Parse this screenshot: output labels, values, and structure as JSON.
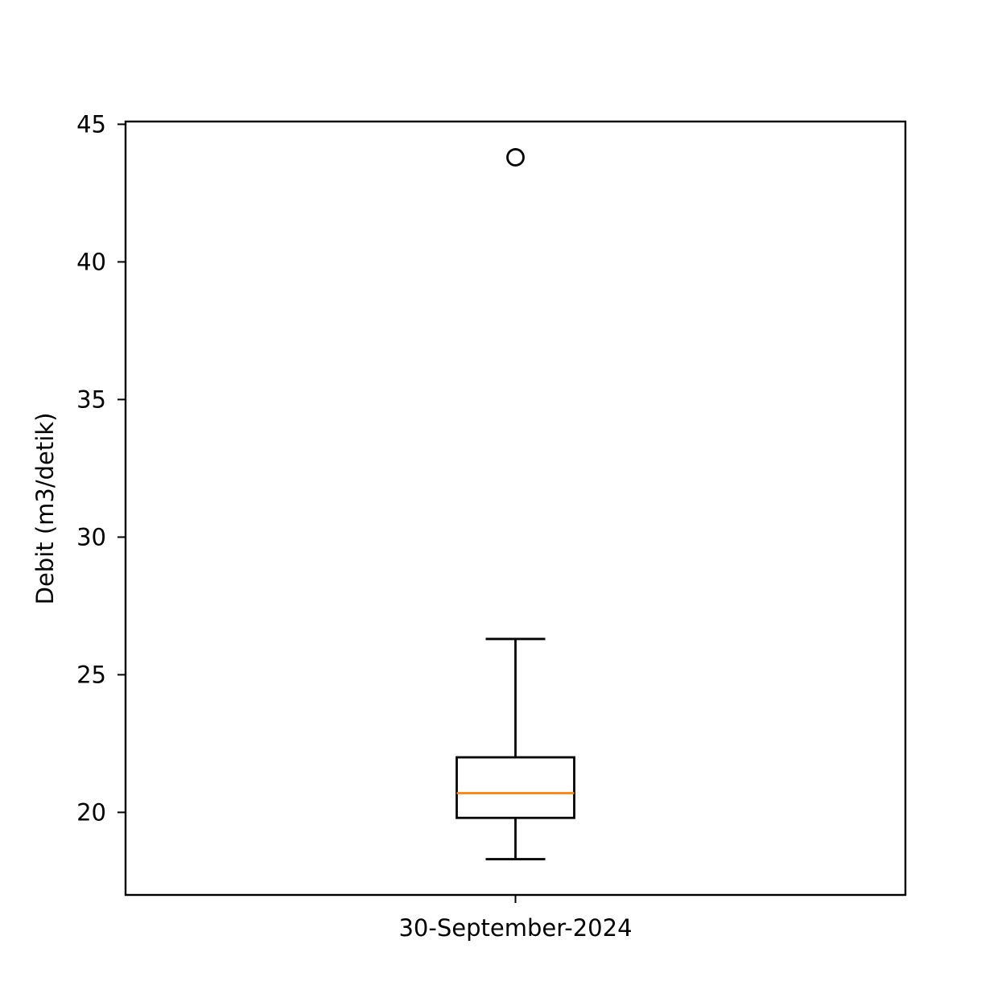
{
  "chart_data": {
    "type": "boxplot",
    "title": "",
    "xlabel": "",
    "ylabel": "Debit (m3/detik)",
    "categories": [
      "30-September-2024"
    ],
    "boxes": [
      {
        "category": "30-September-2024",
        "whisker_low": 18.3,
        "q1": 19.8,
        "median": 20.7,
        "q3": 22.0,
        "whisker_high": 26.3,
        "outliers": [
          43.8
        ]
      }
    ],
    "ylim": [
      17.0,
      45.1
    ],
    "yticks": [
      20,
      25,
      30,
      35,
      40,
      45
    ],
    "ytick_labels": [
      "20",
      "25",
      "30",
      "35",
      "40",
      "45"
    ],
    "grid": false,
    "legend": "none",
    "colors": {
      "box": "#000000",
      "median": "#ff7f0e",
      "whisker": "#000000",
      "outlier": "#000000"
    }
  }
}
